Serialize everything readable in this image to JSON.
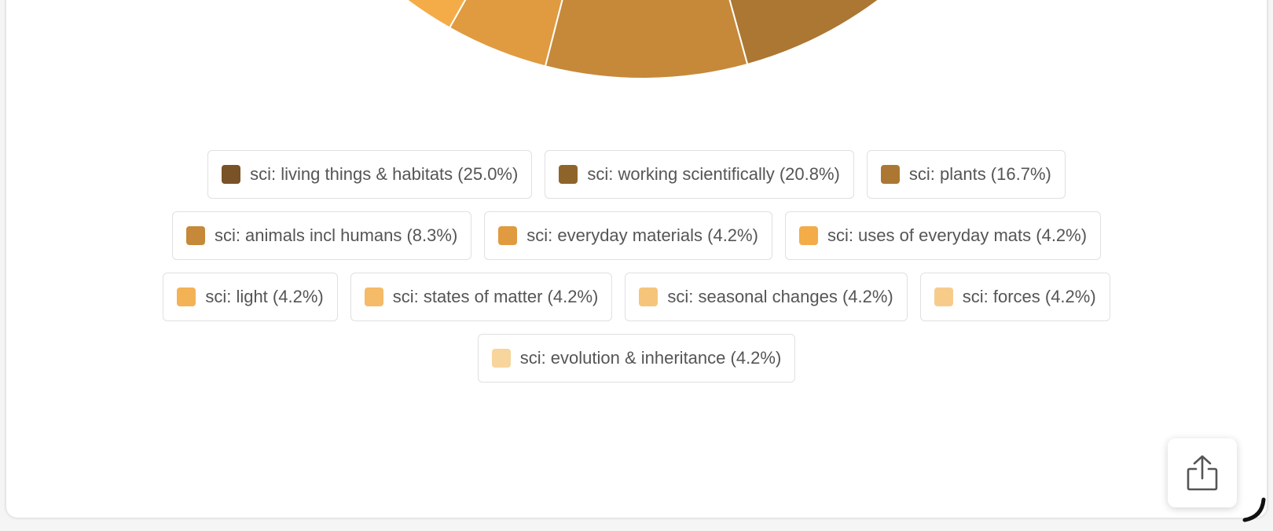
{
  "chart_data": {
    "type": "pie",
    "slices": [
      {
        "label": "sci: living things & habitats (25.0%)",
        "value": 25.0,
        "color": "#7a5227"
      },
      {
        "label": "sci: working scientifically (20.8%)",
        "value": 20.8,
        "color": "#8f642b"
      },
      {
        "label": "sci: plants (16.7%)",
        "value": 16.7,
        "color": "#ab7732"
      },
      {
        "label": "sci: animals incl humans (8.3%)",
        "value": 8.3,
        "color": "#c68939"
      },
      {
        "label": "sci: everyday materials (4.2%)",
        "value": 4.2,
        "color": "#e09a40"
      },
      {
        "label": "sci: uses of everyday mats (4.2%)",
        "value": 4.2,
        "color": "#f4ac48"
      },
      {
        "label": "sci: light (4.2%)",
        "value": 4.2,
        "color": "#f4b256"
      },
      {
        "label": "sci: states of matter (4.2%)",
        "value": 4.2,
        "color": "#f5bb68"
      },
      {
        "label": "sci: seasonal changes (4.2%)",
        "value": 4.2,
        "color": "#f6c47a"
      },
      {
        "label": "sci: forces (4.2%)",
        "value": 4.2,
        "color": "#f7cc8b"
      },
      {
        "label": "sci: evolution & inheritance (4.2%)",
        "value": 4.2,
        "color": "#f8d59d"
      }
    ],
    "legend": "bottom"
  },
  "share": {
    "icon": "share-icon"
  }
}
